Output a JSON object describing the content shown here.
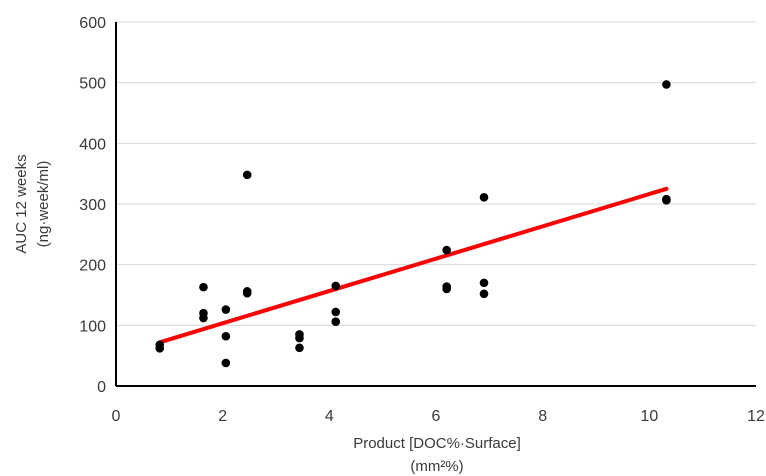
{
  "chart_data": {
    "type": "scatter",
    "xlabel": "Product [DOC%·Surface]",
    "xlabel_unit": "(mm²%)",
    "ylabel": "AUC 12 weeks",
    "ylabel_unit": "(ng·week/ml)",
    "xlim": [
      0,
      12
    ],
    "ylim": [
      0,
      600
    ],
    "x_ticks": [
      0,
      2,
      4,
      6,
      8,
      10,
      12
    ],
    "y_ticks": [
      0,
      100,
      200,
      300,
      400,
      500,
      600
    ],
    "grid": "horizontal",
    "legend": "none",
    "series": [
      {
        "color": "#000000",
        "points": [
          [
            0.82,
            68
          ],
          [
            0.82,
            62
          ],
          [
            1.64,
            163
          ],
          [
            1.64,
            120
          ],
          [
            1.64,
            112
          ],
          [
            2.06,
            126
          ],
          [
            2.06,
            82
          ],
          [
            2.06,
            38
          ],
          [
            2.46,
            348
          ],
          [
            2.46,
            156
          ],
          [
            2.46,
            153
          ],
          [
            3.44,
            85
          ],
          [
            3.44,
            79
          ],
          [
            3.44,
            63
          ],
          [
            4.12,
            165
          ],
          [
            4.12,
            122
          ],
          [
            4.12,
            106
          ],
          [
            6.2,
            224
          ],
          [
            6.2,
            164
          ],
          [
            6.2,
            160
          ],
          [
            6.9,
            311
          ],
          [
            6.9,
            170
          ],
          [
            6.9,
            152
          ],
          [
            10.32,
            497
          ],
          [
            10.32,
            308
          ],
          [
            10.32,
            306
          ]
        ]
      }
    ],
    "trendline": {
      "color": "#ff0000",
      "x": [
        0.82,
        10.32
      ],
      "y": [
        72,
        325
      ]
    }
  }
}
